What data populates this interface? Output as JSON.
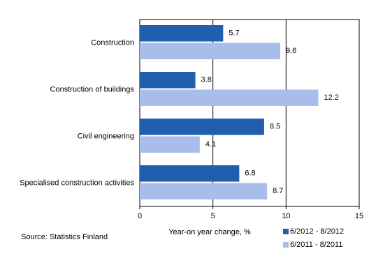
{
  "chart_data": {
    "type": "hbar",
    "categories": [
      "Construction",
      "Construction of buildings",
      "Civil engineering",
      "Specialised construction activities"
    ],
    "series": [
      {
        "name": "6/2012 - 8/2012",
        "color": "#1f5fae",
        "values": [
          5.7,
          3.8,
          8.5,
          6.8
        ]
      },
      {
        "name": "6/2011 - 8/2011",
        "color": "#a8bdea",
        "values": [
          9.6,
          12.2,
          4.1,
          8.7
        ]
      }
    ],
    "xlabel": "Year-on year change, %",
    "xlim": [
      0,
      15
    ],
    "xticks": [
      0,
      5,
      10,
      15
    ],
    "grid": true,
    "legend": "bottom-right",
    "source": "Source: Statistics Finland"
  }
}
